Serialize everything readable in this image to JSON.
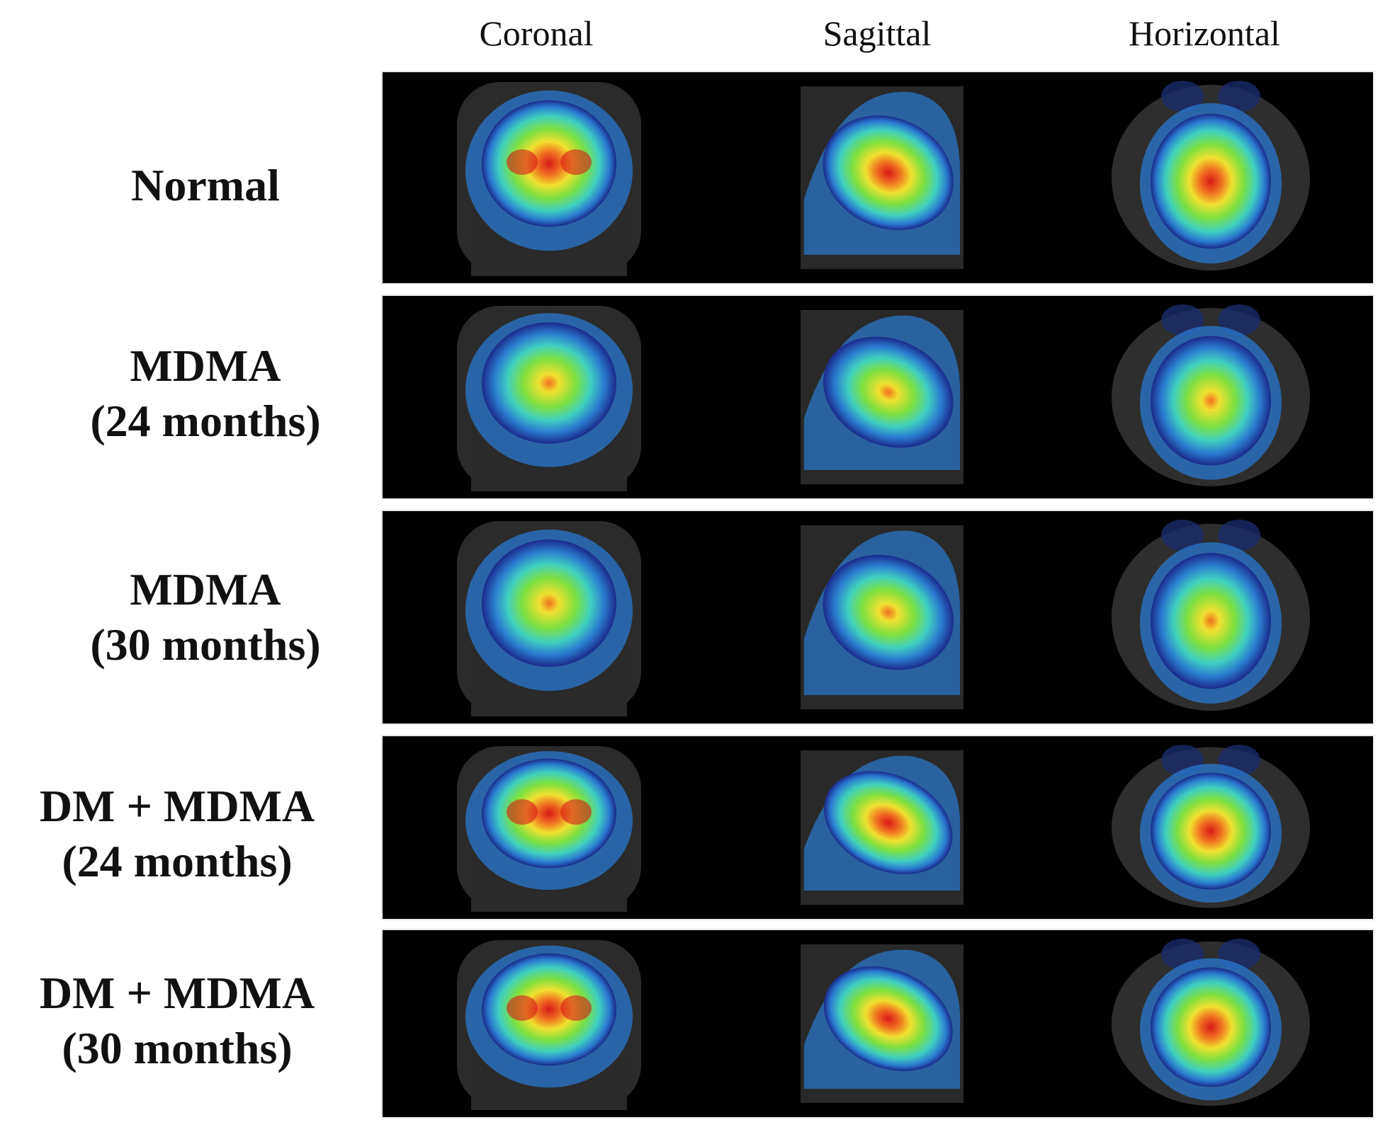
{
  "columns": [
    "Coronal",
    "Sagittal",
    "Horizontal"
  ],
  "rows": [
    {
      "label_line1": "Normal",
      "label_line2": "",
      "intensity": "high"
    },
    {
      "label_line1": "MDMA",
      "label_line2": "(24 months)",
      "intensity": "low"
    },
    {
      "label_line1": "MDMA",
      "label_line2": "(30 months)",
      "intensity": "low"
    },
    {
      "label_line1": "DM + MDMA",
      "label_line2": "(24 months)",
      "intensity": "high"
    },
    {
      "label_line1": "DM + MDMA",
      "label_line2": "(30 months)",
      "intensity": "high"
    }
  ],
  "colormap": [
    "#1a2a8a",
    "#2a7ad0",
    "#3fd0c0",
    "#7de040",
    "#f0e030",
    "#f07020",
    "#d81818"
  ]
}
